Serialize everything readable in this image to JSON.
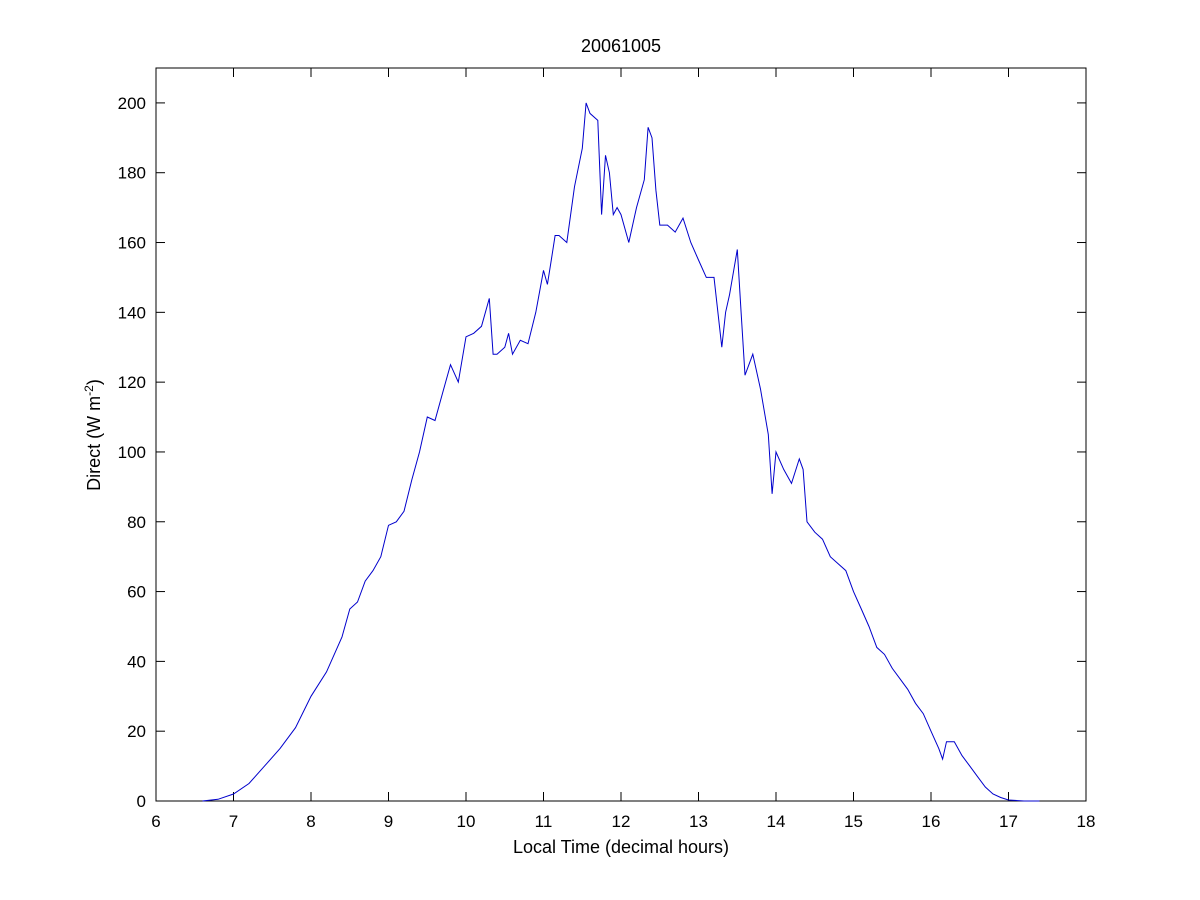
{
  "chart_data": {
    "type": "line",
    "title": "20061005",
    "xlabel": "Local Time (decimal hours)",
    "ylabel_main": "Direct (W m",
    "ylabel_sup": "-2",
    "ylabel_close": ")",
    "xlim": [
      6,
      18
    ],
    "ylim": [
      0,
      210
    ],
    "xticks": [
      6,
      7,
      8,
      9,
      10,
      11,
      12,
      13,
      14,
      15,
      16,
      17,
      18
    ],
    "yticks": [
      0,
      20,
      40,
      60,
      80,
      100,
      120,
      140,
      160,
      180,
      200
    ],
    "grid": false,
    "line_color": "#0000cc",
    "series": [
      {
        "x": [
          6.6,
          6.8,
          7.0,
          7.2,
          7.4,
          7.6,
          7.8,
          8.0,
          8.2,
          8.4,
          8.5,
          8.6,
          8.7,
          8.8,
          8.9,
          9.0,
          9.1,
          9.2,
          9.3,
          9.4,
          9.5,
          9.6,
          9.7,
          9.8,
          9.9,
          10.0,
          10.1,
          10.2,
          10.3,
          10.35,
          10.4,
          10.5,
          10.55,
          10.6,
          10.7,
          10.8,
          10.9,
          11.0,
          11.05,
          11.1,
          11.15,
          11.2,
          11.3,
          11.4,
          11.5,
          11.55,
          11.6,
          11.7,
          11.75,
          11.8,
          11.85,
          11.9,
          11.95,
          12.0,
          12.1,
          12.2,
          12.3,
          12.35,
          12.4,
          12.45,
          12.5,
          12.6,
          12.7,
          12.8,
          12.9,
          13.0,
          13.1,
          13.2,
          13.3,
          13.35,
          13.4,
          13.5,
          13.55,
          13.6,
          13.7,
          13.8,
          13.9,
          13.95,
          14.0,
          14.1,
          14.2,
          14.3,
          14.35,
          14.4,
          14.5,
          14.6,
          14.7,
          14.8,
          14.9,
          15.0,
          15.1,
          15.2,
          15.3,
          15.4,
          15.5,
          15.6,
          15.7,
          15.8,
          15.9,
          16.0,
          16.1,
          16.15,
          16.2,
          16.3,
          16.4,
          16.5,
          16.6,
          16.7,
          16.8,
          16.9,
          17.0,
          17.2,
          17.4
        ],
        "y": [
          0,
          0.5,
          2,
          5,
          10,
          15,
          21,
          30,
          37,
          47,
          55,
          57,
          63,
          66,
          70,
          79,
          80,
          83,
          92,
          100,
          110,
          109,
          117,
          125,
          120,
          133,
          134,
          136,
          144,
          128,
          128,
          130,
          134,
          128,
          132,
          131,
          140,
          152,
          148,
          155,
          162,
          162,
          160,
          176,
          187,
          200,
          197,
          195,
          168,
          185,
          180,
          168,
          170,
          168,
          160,
          170,
          178,
          193,
          190,
          175,
          165,
          165,
          163,
          167,
          160,
          155,
          150,
          150,
          130,
          140,
          145,
          158,
          140,
          122,
          128,
          118,
          105,
          88,
          100,
          95,
          91,
          98,
          95,
          80,
          77,
          75,
          70,
          68,
          66,
          60,
          55,
          50,
          44,
          42,
          38,
          35,
          32,
          28,
          25,
          20,
          15,
          12,
          17,
          17,
          13,
          10,
          7,
          4,
          2,
          1,
          0.3,
          0,
          0
        ]
      }
    ]
  }
}
